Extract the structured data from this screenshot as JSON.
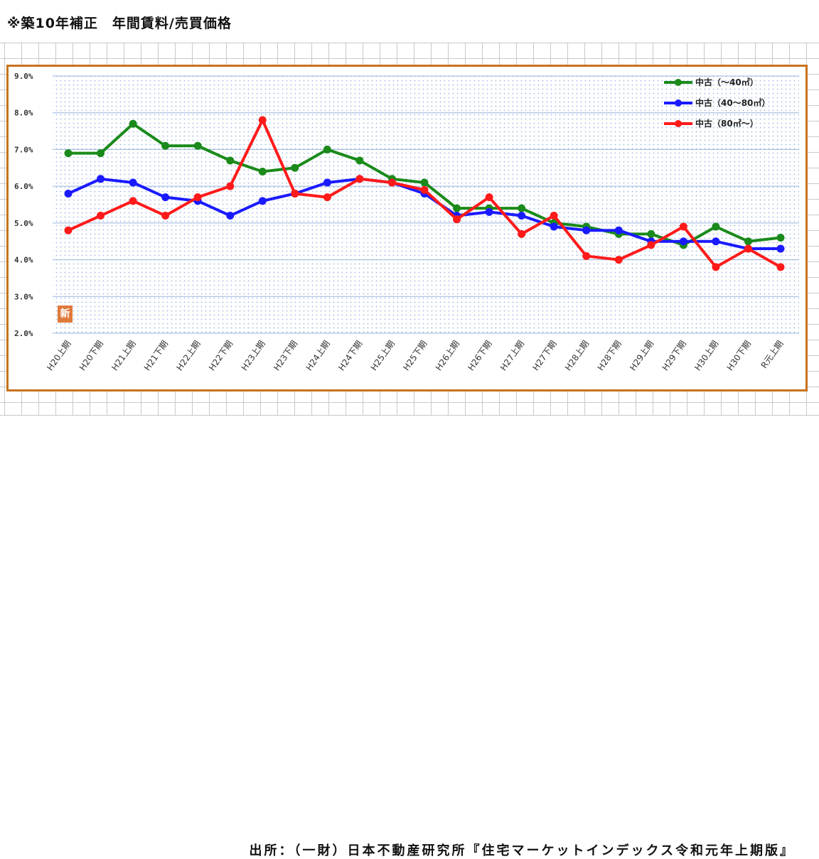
{
  "page_title": "※築10年補正　年間賃料/売買価格",
  "source": "出所：（一財）日本不動産研究所『住宅マーケットインデックス令和元年上期版』",
  "stamp": "新",
  "chart_data": {
    "type": "line",
    "title": "",
    "xlabel": "",
    "ylabel": "",
    "ylim": [
      2.0,
      9.0
    ],
    "yticks": [
      "2.0%",
      "3.0%",
      "4.0%",
      "5.0%",
      "6.0%",
      "7.0%",
      "8.0%",
      "9.0%"
    ],
    "grid": true,
    "legend_position": "top-right",
    "categories": [
      "H20上期",
      "H20下期",
      "H21上期",
      "H21下期",
      "H22上期",
      "H22下期",
      "H23上期",
      "H23下期",
      "H24上期",
      "H24下期",
      "H25上期",
      "H25下期",
      "H26上期",
      "H26下期",
      "H27上期",
      "H27下期",
      "H28上期",
      "H28下期",
      "H29上期",
      "H29下期",
      "H30上期",
      "H30下期",
      "R元上期"
    ],
    "series": [
      {
        "name": "中古（～40㎡）",
        "color": "#1a8a1a",
        "values": [
          6.9,
          6.9,
          7.7,
          7.1,
          7.1,
          6.7,
          6.4,
          6.5,
          7.0,
          6.7,
          6.2,
          6.1,
          5.4,
          5.4,
          5.4,
          5.0,
          4.9,
          4.7,
          4.7,
          4.4,
          4.9,
          4.5,
          4.6
        ]
      },
      {
        "name": "中古（40～80㎡）",
        "color": "#1a1aff",
        "values": [
          5.8,
          6.2,
          6.1,
          5.7,
          5.6,
          5.2,
          5.6,
          5.8,
          6.1,
          6.2,
          6.1,
          5.8,
          5.2,
          5.3,
          5.2,
          4.9,
          4.8,
          4.8,
          4.5,
          4.5,
          4.5,
          4.3,
          4.3
        ]
      },
      {
        "name": "中古（80㎡～）",
        "color": "#ff1a1a",
        "values": [
          4.8,
          5.2,
          5.6,
          5.2,
          5.7,
          6.0,
          7.8,
          5.8,
          5.7,
          6.2,
          6.1,
          5.9,
          5.1,
          5.7,
          4.7,
          5.2,
          4.1,
          4.0,
          4.4,
          4.9,
          3.8,
          4.3,
          3.8
        ]
      }
    ]
  }
}
